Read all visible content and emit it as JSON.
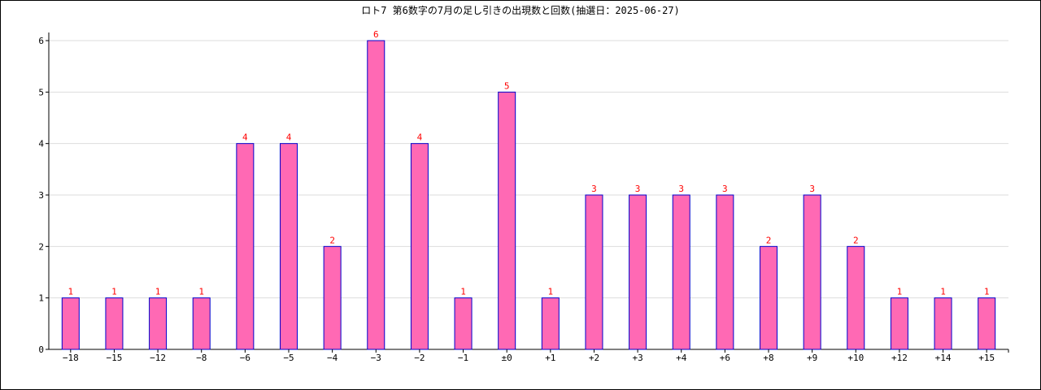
{
  "chart_data": {
    "type": "bar",
    "title": "ロト7 第6数字の7月の足し引きの出現数と回数(抽選日：2025-06-27)",
    "categories": [
      "−18",
      "−15",
      "−12",
      "−8",
      "−6",
      "−5",
      "−4",
      "−3",
      "−2",
      "−1",
      "±0",
      "+1",
      "+2",
      "+3",
      "+4",
      "+6",
      "+8",
      "+9",
      "+10",
      "+12",
      "+14",
      "+15"
    ],
    "values": [
      1,
      1,
      1,
      1,
      4,
      4,
      2,
      6,
      4,
      1,
      5,
      1,
      3,
      3,
      3,
      3,
      2,
      3,
      2,
      1,
      1,
      1
    ],
    "xlabel": "",
    "ylabel": "",
    "ylim": [
      0,
      6
    ],
    "yticks": [
      0,
      1,
      2,
      3,
      4,
      5,
      6
    ],
    "grid": "horizontal",
    "bar_fill": "#ff69b4",
    "bar_stroke": "#0000cd",
    "data_label_color": "#ff0000",
    "grid_color": "#dddddd"
  }
}
